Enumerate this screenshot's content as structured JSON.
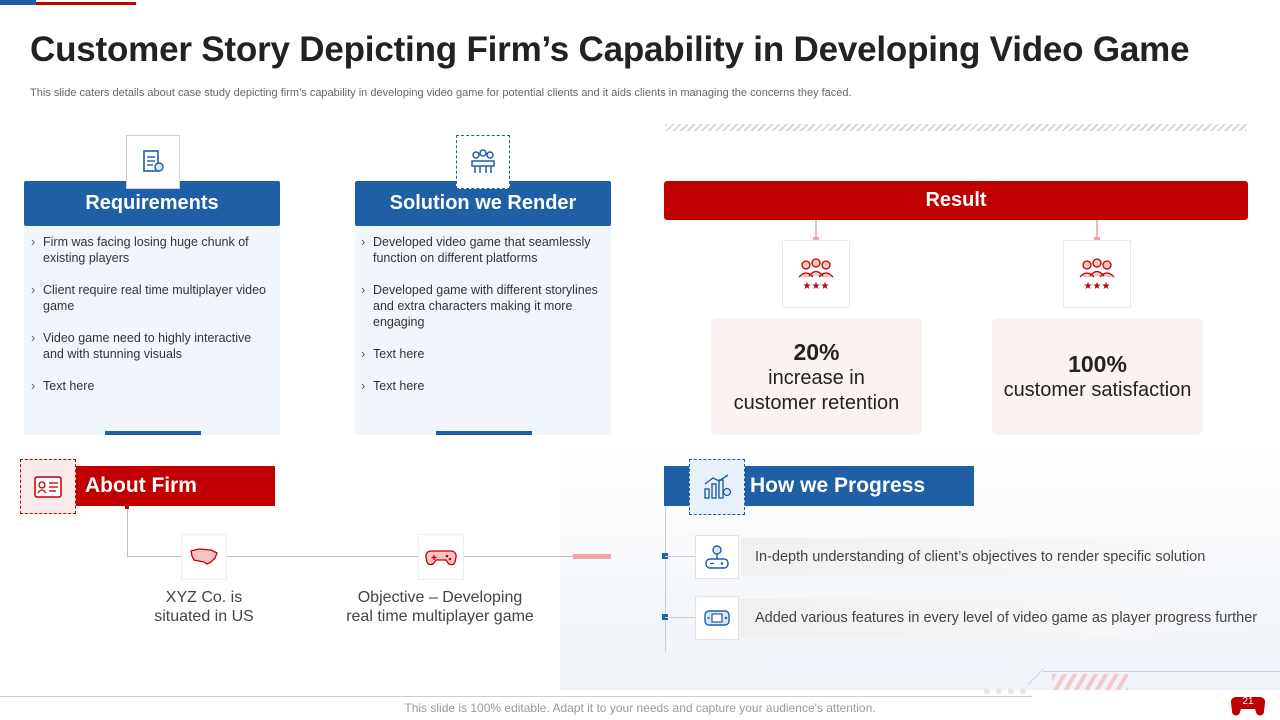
{
  "slide": {
    "title": "Customer Story Depicting Firm’s Capability in Developing Video Game",
    "subtitle": "This slide caters details about case study depicting firm’s capability in developing video game for potential clients and it aids clients in managing the concerns they faced."
  },
  "requirements": {
    "heading": "Requirements",
    "icon": "document-icon",
    "items": [
      "Firm was facing losing huge chunk of existing players",
      "Client require real time multiplayer video game",
      "Video game need to highly interactive and with stunning visuals",
      "Text here"
    ]
  },
  "solution": {
    "heading": "Solution we Render",
    "icon": "team-meeting-icon",
    "items": [
      "Developed video game that seamlessly function on different platforms",
      "Developed game with different storylines and extra characters making it more engaging",
      "Text here",
      "Text here"
    ]
  },
  "result": {
    "heading": "Result",
    "stats": [
      {
        "value": "20%",
        "label_line1": "increase in",
        "label_line2": "customer retention",
        "icon": "customer-group-icon"
      },
      {
        "value": "100%",
        "label_line1": "customer satisfaction",
        "label_line2": "",
        "icon": "customer-rating-icon"
      }
    ]
  },
  "about": {
    "heading": "About Firm",
    "icon": "id-card-icon",
    "location_line1": "XYZ Co. is",
    "location_line2": "situated in US",
    "location_icon": "us-map-icon",
    "objective_line1": "Objective – Developing",
    "objective_line2": "real time multiplayer game",
    "objective_icon": "gamepad-icon"
  },
  "progress": {
    "heading": "How we Progress",
    "icon": "chart-growth-icon",
    "items": [
      {
        "text": "In-depth understanding of client’s objectives to render specific solution",
        "icon": "joystick-icon"
      },
      {
        "text": "Added various features in every level of video game as player progress further",
        "icon": "handheld-console-icon"
      }
    ]
  },
  "footer": {
    "text": "This slide is 100% editable. Adapt it to your needs and capture your audience's attention.",
    "page_number": "21"
  },
  "colors": {
    "blue": "#1f5fa6",
    "red": "#c00000",
    "pink": "#f0a7a7"
  }
}
